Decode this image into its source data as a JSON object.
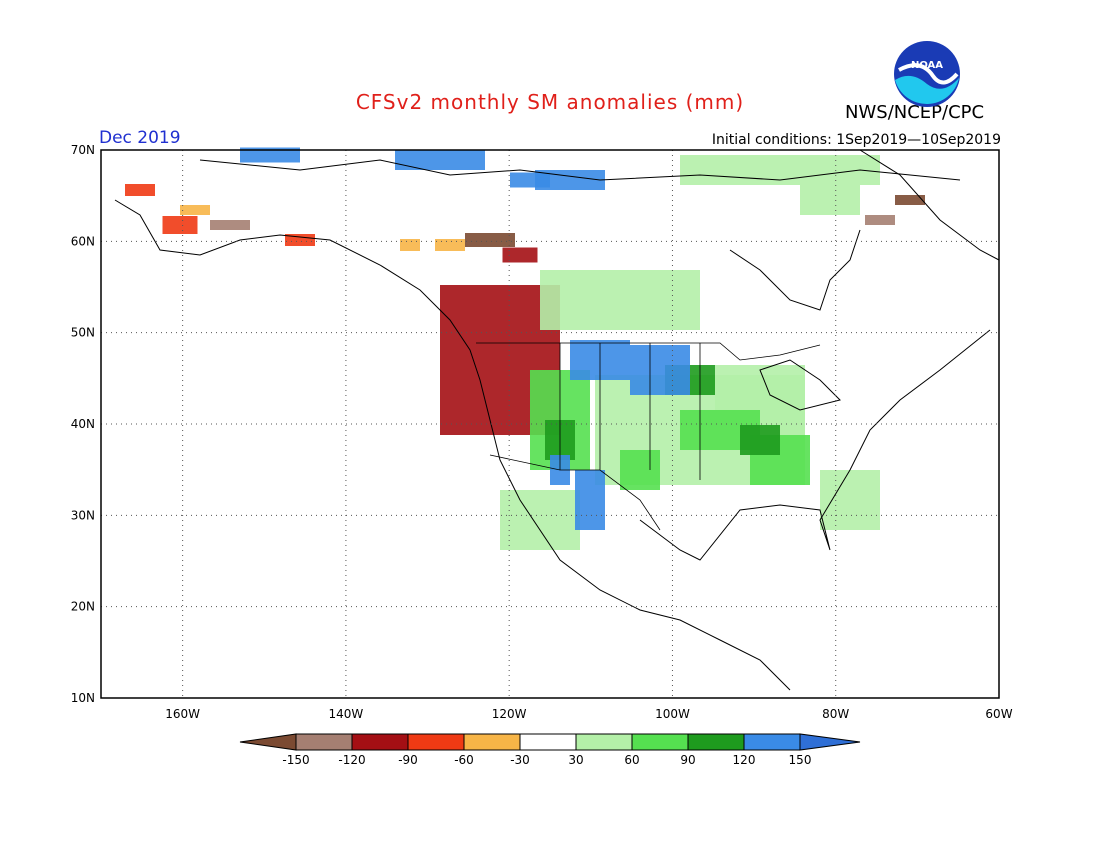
{
  "title": "CFSv2 monthly SM anomalies (mm)",
  "agency": "NWS/NCEP/CPC",
  "logo_text": "NOAA",
  "forecast_month": "Dec 2019",
  "initial_conditions": "Initial conditions: 1Sep2019—10Sep2019",
  "map": {
    "lon_range": [
      -170,
      -60
    ],
    "lat_range": [
      10,
      70
    ],
    "lat_labels": [
      "70N",
      "60N",
      "50N",
      "40N",
      "30N",
      "20N",
      "10N"
    ],
    "lon_labels": [
      "160W",
      "140W",
      "120W",
      "100W",
      "80W",
      "60W"
    ]
  },
  "legend": {
    "labels": [
      "-150",
      "-120",
      "-90",
      "-60",
      "-30",
      "30",
      "60",
      "90",
      "120",
      "150"
    ],
    "colors": [
      "#7b4a32",
      "#a57f72",
      "#a40f14",
      "#ef3a14",
      "#f7b547",
      "#ffffff",
      "#b4f0a8",
      "#55e050",
      "#1e9b1e",
      "#3a8be6",
      "#2f6fd6"
    ]
  }
}
